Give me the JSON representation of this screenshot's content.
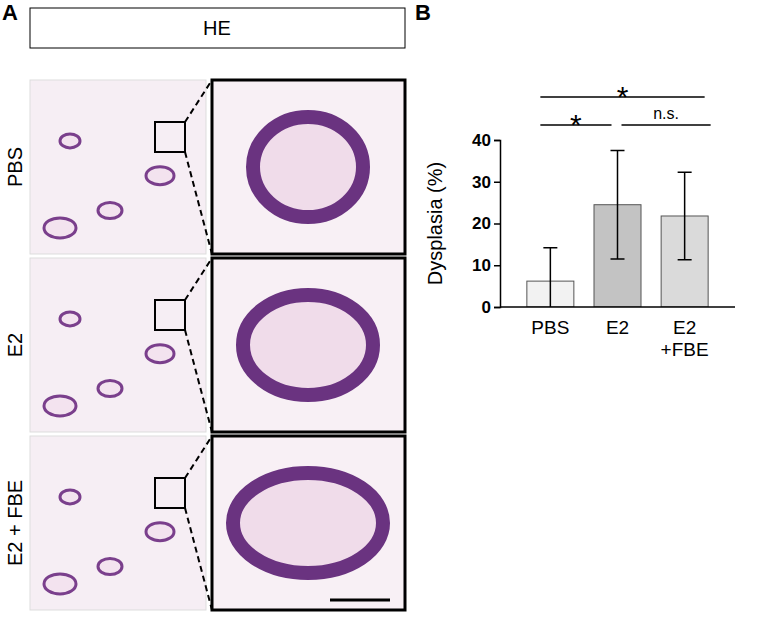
{
  "image_panel": {
    "panel_label": "A",
    "header": "HE",
    "rows": [
      "PBS",
      "E2",
      "E2 + FBE"
    ]
  },
  "chart_data": {
    "type": "bar",
    "panel_label": "B",
    "y_label": "Dysplasia (%)",
    "categories": [
      "PBS",
      "E2",
      "E2\n+FBE"
    ],
    "values": [
      6.2,
      24.5,
      21.8
    ],
    "errors": [
      8,
      13,
      10.5
    ],
    "colors": [
      "#f2f2f2",
      "#c3c3c3",
      "#dadada"
    ],
    "ylim": [
      0,
      40
    ],
    "yticks": [
      0,
      10,
      20,
      30,
      40
    ],
    "grid": false,
    "annotations": [
      {
        "between": [
          "PBS",
          "E2\n+FBE"
        ],
        "text": "*"
      },
      {
        "between": [
          "PBS",
          "E2"
        ],
        "text": "*"
      },
      {
        "between": [
          "E2",
          "E2\n+FBE"
        ],
        "text": "n.s."
      }
    ]
  }
}
